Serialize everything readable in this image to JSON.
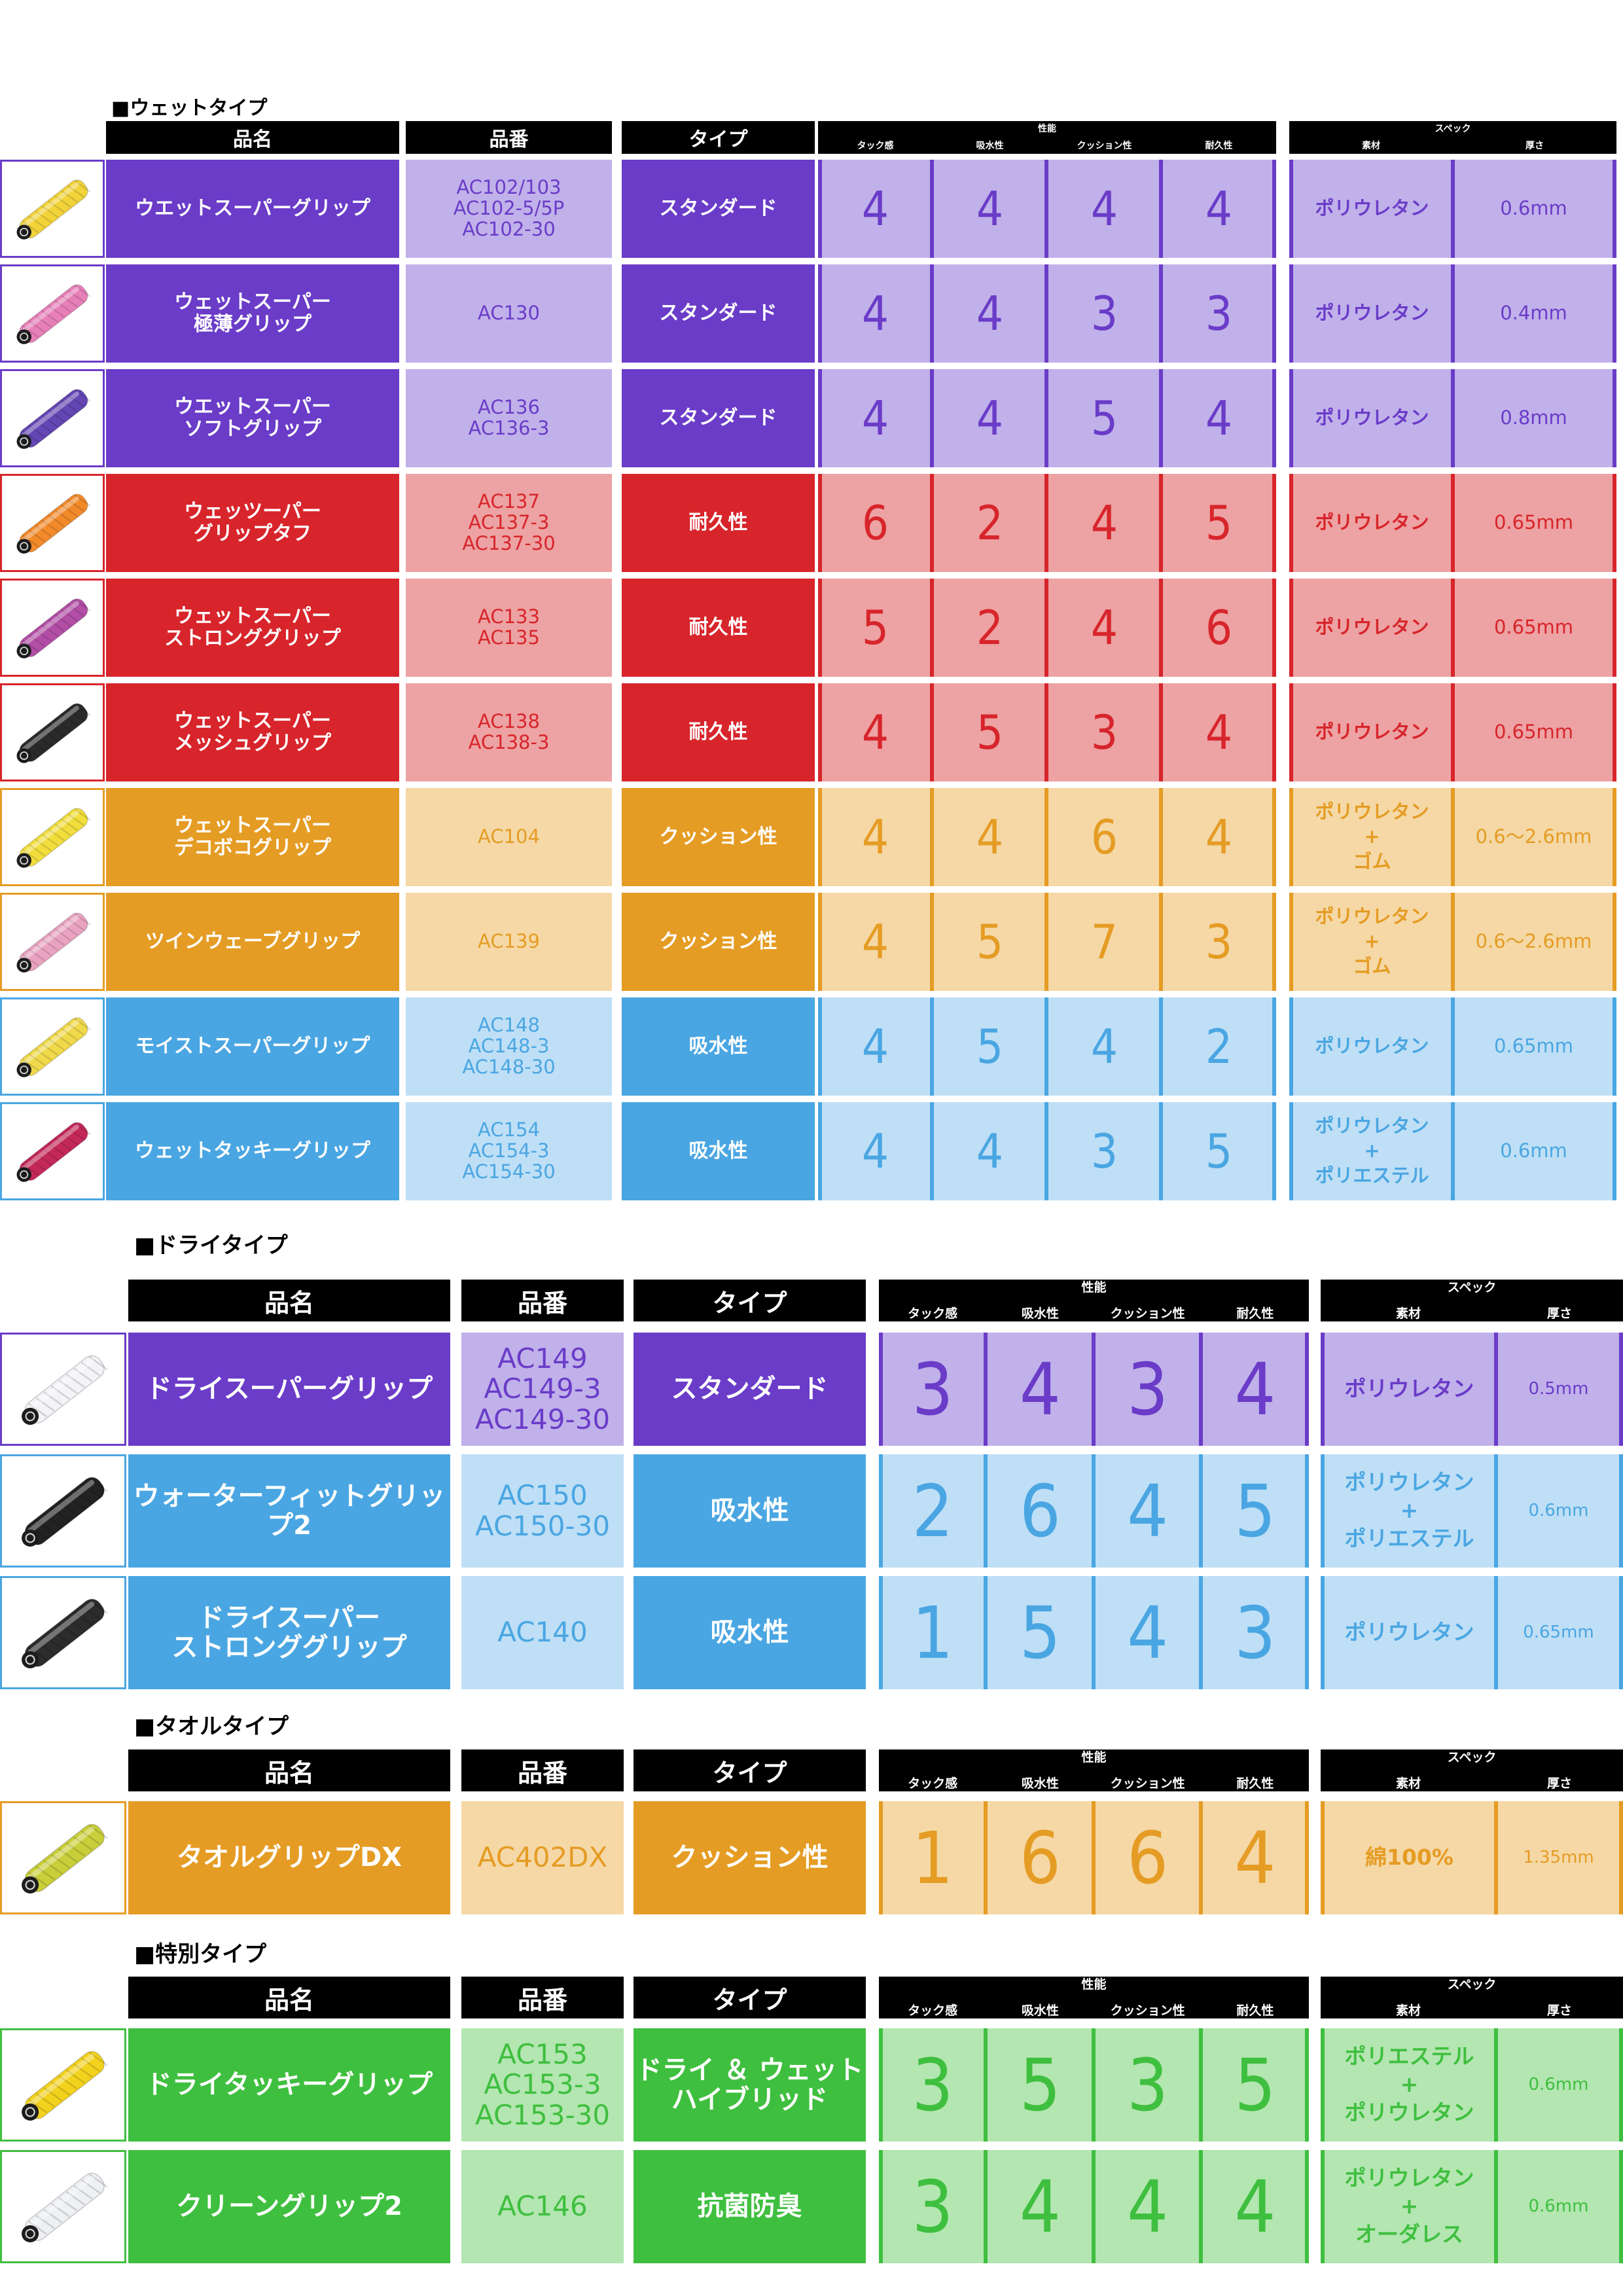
{
  "colors": {
    "purple": {
      "dark": "#6a3cc8",
      "light": "#c1b1ea",
      "text": "#6a3cc8"
    },
    "red": {
      "dark": "#d7252b",
      "light": "#eda2a3",
      "text": "#d7252b"
    },
    "orange": {
      "dark": "#e59c24",
      "light": "#f5d8a6",
      "text": "#e59c24"
    },
    "blue": {
      "dark": "#4aa6e2",
      "light": "#bfdff6",
      "text": "#4aa6e2"
    },
    "green": {
      "dark": "#3fbf3f",
      "light": "#b3e6b1",
      "text": "#3fbf3f"
    }
  },
  "header_labels": {
    "name": "品名",
    "code": "品番",
    "type": "タイプ",
    "performance": "性能",
    "tack": "タック感",
    "absorb": "吸水性",
    "cushion": "クッション性",
    "durability": "耐久性",
    "spec": "スペック",
    "material": "素材",
    "thickness": "厚さ"
  },
  "sections": [
    {
      "title": "■ウェットタイプ",
      "rows": [
        {
          "name": "ウエットスーパーグリップ",
          "code": "AC102/103\nAC102-5/5P\nAC102-30",
          "type": "スタンダード",
          "tack": "4",
          "absorb": "4",
          "cushion": "4",
          "durability": "4",
          "material": "ポリウレタン",
          "thickness": "0.6mm",
          "color": "purple",
          "thumb_icon": "grip-yellow-icon",
          "grip_color": "#f2d33a"
        },
        {
          "name": "ウェットスーパー\n極薄グリップ",
          "code": "AC130",
          "type": "スタンダード",
          "tack": "4",
          "absorb": "4",
          "cushion": "3",
          "durability": "3",
          "material": "ポリウレタン",
          "thickness": "0.4mm",
          "color": "purple",
          "thumb_icon": "grip-pink-icon",
          "grip_color": "#e77fb8"
        },
        {
          "name": "ウエットスーパー\nソフトグリップ",
          "code": "AC136\nAC136-3",
          "type": "スタンダード",
          "tack": "4",
          "absorb": "4",
          "cushion": "5",
          "durability": "4",
          "material": "ポリウレタン",
          "thickness": "0.8mm",
          "color": "purple",
          "thumb_icon": "grip-purple-icon",
          "grip_color": "#6446b4"
        },
        {
          "name": "ウェッツーパー\nグリップタフ",
          "code": "AC137\nAC137-3\nAC137-30",
          "type": "耐久性",
          "tack": "6",
          "absorb": "2",
          "cushion": "4",
          "durability": "5",
          "material": "ポリウレタン",
          "thickness": "0.65mm",
          "color": "red",
          "thumb_icon": "grip-orange-icon",
          "grip_color": "#f28a2a"
        },
        {
          "name": "ウェットスーパー\nストロンググリップ",
          "code": "AC133\nAC135",
          "type": "耐久性",
          "tack": "5",
          "absorb": "2",
          "cushion": "4",
          "durability": "6",
          "material": "ポリウレタン",
          "thickness": "0.65mm",
          "color": "red",
          "thumb_icon": "grip-magenta-icon",
          "grip_color": "#b24ea6"
        },
        {
          "name": "ウェットスーパー\nメッシュグリップ",
          "code": "AC138\nAC138-3",
          "type": "耐久性",
          "tack": "4",
          "absorb": "5",
          "cushion": "3",
          "durability": "4",
          "material": "ポリウレタン",
          "thickness": "0.65mm",
          "color": "red",
          "thumb_icon": "grip-black-icon",
          "grip_color": "#2a2a2a"
        },
        {
          "name": "ウェットスーパー\nデコボコグリップ",
          "code": "AC104",
          "type": "クッション性",
          "tack": "4",
          "absorb": "4",
          "cushion": "6",
          "durability": "4",
          "material": "ポリウレタン\n+\nゴム",
          "thickness": "0.6～2.6mm",
          "color": "orange",
          "thumb_icon": "grip-yellow-icon",
          "grip_color": "#f1dd3c"
        },
        {
          "name": "ツインウェーブグリップ",
          "code": "AC139",
          "type": "クッション性",
          "tack": "4",
          "absorb": "5",
          "cushion": "7",
          "durability": "3",
          "material": "ポリウレタン\n+\nゴム",
          "thickness": "0.6～2.6mm",
          "color": "orange",
          "thumb_icon": "grip-pink-icon",
          "grip_color": "#e9a3c0"
        },
        {
          "name": "モイストスーパーグリップ",
          "code": "AC148\nAC148-3\nAC148-30",
          "type": "吸水性",
          "tack": "4",
          "absorb": "5",
          "cushion": "4",
          "durability": "2",
          "material": "ポリウレタン",
          "thickness": "0.65mm",
          "color": "blue",
          "thumb_icon": "grip-yellow-icon",
          "grip_color": "#f0d94a"
        },
        {
          "name": "ウェットタッキーグリップ",
          "code": "AC154\nAC154-3\nAC154-30",
          "type": "吸水性",
          "tack": "4",
          "absorb": "4",
          "cushion": "3",
          "durability": "5",
          "material": "ポリウレタン\n+\nポリエステル",
          "thickness": "0.6mm",
          "color": "blue",
          "thumb_icon": "grip-crimson-icon",
          "grip_color": "#c4285a"
        }
      ]
    },
    {
      "title": "■ドライタイプ",
      "rows": [
        {
          "name": "ドライスーパーグリップ",
          "code": "AC149\nAC149-3\nAC149-30",
          "type": "スタンダード",
          "tack": "3",
          "absorb": "4",
          "cushion": "3",
          "durability": "4",
          "material": "ポリウレタン",
          "thickness": "0.5mm",
          "color": "purple",
          "thumb_icon": "grip-white-icon",
          "grip_color": "#f4f4f8"
        },
        {
          "name": "ウォーターフィットグリップ2",
          "code": "AC150\nAC150-30",
          "type": "吸水性",
          "tack": "2",
          "absorb": "6",
          "cushion": "4",
          "durability": "5",
          "material": "ポリウレタン\n+\nポリエステル",
          "thickness": "0.6mm",
          "color": "blue",
          "thumb_icon": "grip-black-icon",
          "grip_color": "#222222"
        },
        {
          "name": "ドライスーパー\nストロンググリップ",
          "code": "AC140",
          "type": "吸水性",
          "tack": "1",
          "absorb": "5",
          "cushion": "4",
          "durability": "3",
          "material": "ポリウレタン",
          "thickness": "0.65mm",
          "color": "blue",
          "thumb_icon": "grip-black-icon",
          "grip_color": "#2c2c2c"
        }
      ]
    },
    {
      "title": "■タオルタイプ",
      "rows": [
        {
          "name": "タオルグリップDX",
          "code": "AC402DX",
          "type": "クッション性",
          "tack": "1",
          "absorb": "6",
          "cushion": "6",
          "durability": "4",
          "material": "綿100%",
          "thickness": "1.35mm",
          "color": "orange",
          "thumb_icon": "grip-towel-icon",
          "grip_color": "#c9cf3a"
        }
      ]
    },
    {
      "title": "■特別タイプ",
      "rows": [
        {
          "name": "ドライタッキーグリップ",
          "code": "AC153\nAC153-3\nAC153-30",
          "type": "ドライ ＆ ウェット\nハイブリッド",
          "tack": "3",
          "absorb": "5",
          "cushion": "3",
          "durability": "5",
          "material": "ポリエステル\n+\nポリウレタン",
          "thickness": "0.6mm",
          "color": "green",
          "thumb_icon": "grip-yellow-icon",
          "grip_color": "#f3d21e"
        },
        {
          "name": "クリーングリップ2",
          "code": "AC146",
          "type": "抗菌防臭",
          "tack": "3",
          "absorb": "4",
          "cushion": "4",
          "durability": "4",
          "material": "ポリウレタン\n+\nオーダレス",
          "thickness": "0.6mm",
          "color": "green",
          "thumb_icon": "grip-white-icon",
          "grip_color": "#eef0f4"
        }
      ]
    }
  ]
}
